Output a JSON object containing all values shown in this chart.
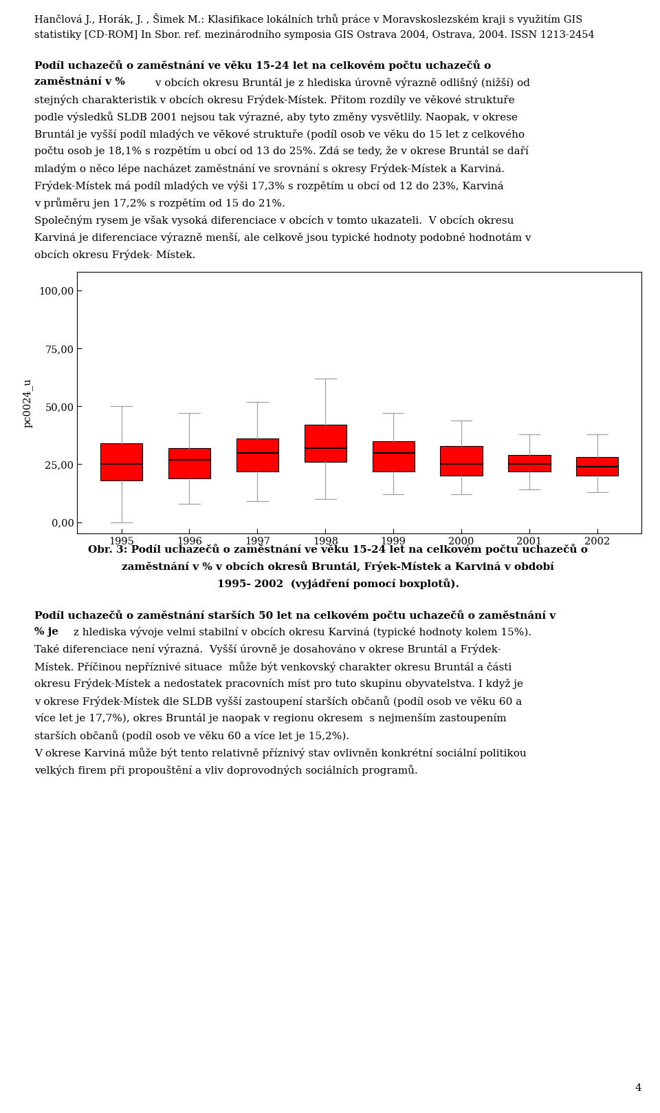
{
  "title_header_line1": "Hančlová J., Horák, J. , Šimek M.: Klasifikace lokálních trhů práce v Moravskoslezském kraji s využitím GIS",
  "title_header_line2": "statistiky [CD-ROM] In Sbor. ref. mezinárodního symposia GIS Ostrava 2004, Ostrava, 2004. ISSN 1213-2454",
  "p1_bold": "Podíl uchazečů o zaměstnání ve věku 15-24 let na celkovém počtu uchazečů o zaměstnání v %",
  "p1_normal": "v obcích okresu Bruntál je z hlediska úrovně výrazně odlišný (nižší) od stejných charakteristik v obcích okresu Frýek-Místek. Přitom rozdíly ve věkové struktuře podle výsledků SLDB 2001 nejsou tak výrazné, aby tyto změny vysvětlily. Naopak, v okrese Bruntál je vyšší podíl mladých ve věkové struktuře (podíl osob ve věku do 15 let z celkového počtu osob je 18,1% s rozpětím u obcí od 13 do 25%. Zdá se tedy, že v okrese Bruntál se daří mladým o něco lépe nacházet zaměstnání ve srovnání s okresy Frýek-Místek a Karviná. Frýek-Místek má podíl mladých ve výši 17,3% s rozpětím u obcí od 12 do 23%, Karviná v průměru jen 17,2% s rozpětím od 15 do 21%.",
  "p2_text": "Společným rysem je však vysoká diferenciace v obcích v tomto ukazateli.  V obcích okresu Karviná je diferenciace výrazně menší, ale celkově jsou typické hodnoty podobné hodnotám v obcích okresu Frýek- Místek.",
  "caption_line1": "Obr. 3: Podíl uchazečů o zaměstnání ve věku 15-24 let na celkovém počtu uchazečů o",
  "caption_line2": "zaměstnání v % v obcích okresů Bruntál, Frýek-Místek a Karviná v období",
  "caption_line3": "1995- 2002  (vyjádření pomocí boxplotů).",
  "p3_bold": "Podíl uchazečů o zaměstnání starších 50 let na celkovém počtu uchazečů o zaměstnání v % je",
  "p3_normal": "z hlediska vývoje velmi stabilní v obcích okresu Karviná (typické hodnoty kolem 15%). Také diferenciace není výrazná.  Vyšší úrovně je dosahováno v okrese Bruntál a Frýek-Místek. Příčinou nepřízni vé situace  může být venkovský charakter okresu Bruntál a části okresu Frýek-Místek a nedostatek pracovních míst pro tuto skupinu obyvatelstva. I když je v okrese Frýek-Místek dle SLDB vyšší zastoupení starších občanů (podíl osob ve věku 60 a více let je 17,7%), okres Bruntál je naopak v regionu okresem s nejmenším zastoupením starších občanů (podíl osob ve věku 60 a více let je 15,2%).",
  "p4_text": "V okrese Karviná může být tento relativně přízni vý stav ovlivňěn konkrétní sociální politikou velkých firem při propouštění a vliv doprovodnch sociálních programů.",
  "page_number": "4",
  "ylabel": "pc0024_u",
  "yticks": [
    0.0,
    25.0,
    50.0,
    75.0,
    100.0
  ],
  "ytick_labels": [
    "0,00",
    "25,00",
    "50,00",
    "75,00",
    "100,00"
  ],
  "years": [
    1995,
    1996,
    1997,
    1998,
    1999,
    2000,
    2001,
    2002
  ],
  "box_color": "#FF0000",
  "whisker_color": "#A0A0A0",
  "median_color": "#000000",
  "box_data": {
    "1995": {
      "q1": 18,
      "median": 25,
      "q3": 34,
      "whisker_low": 0,
      "whisker_high": 50
    },
    "1996": {
      "q1": 19,
      "median": 27,
      "q3": 32,
      "whisker_low": 8,
      "whisker_high": 47
    },
    "1997": {
      "q1": 22,
      "median": 30,
      "q3": 36,
      "whisker_low": 9,
      "whisker_high": 52
    },
    "1998": {
      "q1": 26,
      "median": 32,
      "q3": 42,
      "whisker_low": 10,
      "whisker_high": 62
    },
    "1999": {
      "q1": 22,
      "median": 30,
      "q3": 35,
      "whisker_low": 12,
      "whisker_high": 47
    },
    "2000": {
      "q1": 20,
      "median": 25,
      "q3": 33,
      "whisker_low": 12,
      "whisker_high": 44
    },
    "2001": {
      "q1": 22,
      "median": 25,
      "q3": 29,
      "whisker_low": 14,
      "whisker_high": 38
    },
    "2002": {
      "q1": 20,
      "median": 24,
      "q3": 28,
      "whisker_low": 13,
      "whisker_high": 38
    }
  },
  "fig_width": 9.6,
  "fig_height": 16.17
}
